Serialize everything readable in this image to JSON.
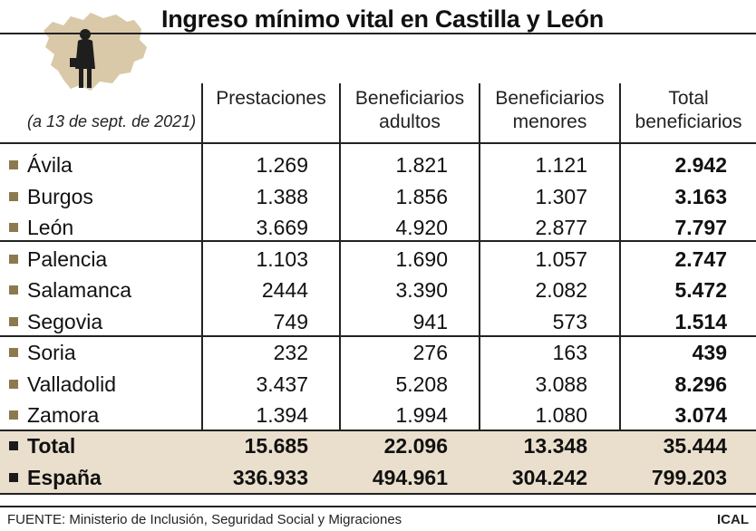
{
  "chart_data": {
    "type": "table",
    "title": "Ingreso mínimo vital en Castilla y León",
    "date_note": "(a 13 de sept. de 2021)",
    "columns": [
      [
        "Prestaciones"
      ],
      [
        "Beneficiarios",
        "adultos"
      ],
      [
        "Beneficiarios",
        "menores"
      ],
      [
        "Total",
        "beneficiarios"
      ]
    ],
    "rows": [
      {
        "name": "Ávila",
        "values": [
          "1.269",
          "1.821",
          "1.121",
          "2.942"
        ]
      },
      {
        "name": "Burgos",
        "values": [
          "1.388",
          "1.856",
          "1.307",
          "3.163"
        ]
      },
      {
        "name": "León",
        "values": [
          "3.669",
          "4.920",
          "2.877",
          "7.797"
        ]
      },
      {
        "name": "Palencia",
        "values": [
          "1.103",
          "1.690",
          "1.057",
          "2.747"
        ]
      },
      {
        "name": "Salamanca",
        "values": [
          "2444",
          "3.390",
          "2.082",
          "5.472"
        ]
      },
      {
        "name": "Segovia",
        "values": [
          "749",
          "941",
          "573",
          "1.514"
        ]
      },
      {
        "name": "Soria",
        "values": [
          "232",
          "276",
          "163",
          "439"
        ]
      },
      {
        "name": "Valladolid",
        "values": [
          "3.437",
          "5.208",
          "3.088",
          "8.296"
        ]
      },
      {
        "name": "Zamora",
        "values": [
          "1.394",
          "1.994",
          "1.080",
          "3.074"
        ]
      }
    ],
    "totals": [
      {
        "name": "Total",
        "values": [
          "15.685",
          "22.096",
          "13.348",
          "35.444"
        ]
      },
      {
        "name": "España",
        "values": [
          "336.933",
          "494.961",
          "304.242",
          "799.203"
        ]
      }
    ],
    "colors": {
      "bullet": "#8c7a4e",
      "totals_background": "#eadfcc",
      "map": "#d9c9a8"
    },
    "icon": "castilla-y-leon-map-with-person-icon"
  },
  "footer": {
    "source": "FUENTE: Ministerio de Inclusión, Seguridad Social y Migraciones",
    "credit": "ICAL"
  }
}
